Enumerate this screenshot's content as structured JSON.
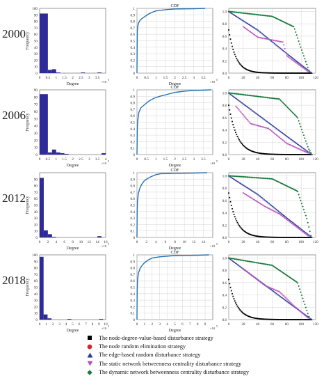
{
  "colors": {
    "hist_bar": "#2e2a9a",
    "cdf_line": "#2471b5",
    "grid": "#cccccc",
    "node_degree": "#000000",
    "node_random": "#d62728",
    "edge_random": "#2b3a9c",
    "static_betweenness": "#b84fc0",
    "dynamic_betweenness": "#1a7a3a"
  },
  "rows": [
    {
      "year": "2000",
      "hist": {
        "ylabel": "Frequency",
        "xlabel": "Degree",
        "xexp": "×10",
        "yticks": [
          "0",
          "10",
          "20",
          "30",
          "40",
          "50",
          "60",
          "70",
          "80",
          "90",
          "100"
        ],
        "xticks": [
          "0",
          "0.5",
          "1",
          "1.5",
          "2",
          "2.5",
          "3",
          "3.5"
        ],
        "ymax": 100,
        "xmax": 4
      },
      "cdf": {
        "title": "CDF",
        "xlabel": "Degree",
        "xexp": "×10",
        "yticks": [
          "0",
          "0.1",
          "0.2",
          "0.3",
          "0.4",
          "0.5",
          "0.6",
          "0.7",
          "0.8",
          "0.9",
          "1"
        ],
        "xticks": [
          "0",
          "0.5",
          "1",
          "1.5",
          "2",
          "2.5",
          "3",
          "3.5"
        ],
        "xmax": 4
      },
      "robust": {
        "yticks": [
          "0.0",
          "0.2",
          "0.4",
          "0.6",
          "0.8",
          "1.0"
        ],
        "xticks": [
          "0",
          "20",
          "40",
          "60",
          "80",
          "100",
          "120"
        ]
      }
    },
    {
      "year": "2006",
      "hist": {
        "ylabel": "Frequency",
        "xlabel": "Degree",
        "xexp": "×10",
        "yticks": [
          "0",
          "10",
          "20",
          "30",
          "40",
          "50",
          "60",
          "70",
          "80",
          "90"
        ],
        "xticks": [
          "0",
          "0.5",
          "1",
          "1.5",
          "2",
          "2.5",
          "3",
          "3.5",
          "4"
        ],
        "ymax": 90,
        "xmax": 4
      },
      "cdf": {
        "title": "CDF",
        "xlabel": "Degree",
        "xexp": "×10",
        "yticks": [
          "0",
          "0.1",
          "0.2",
          "0.3",
          "0.4",
          "0.5",
          "0.6",
          "0.7",
          "0.8",
          "0.9",
          "1"
        ],
        "xticks": [
          "0",
          "0.5",
          "1",
          "1.5",
          "2",
          "2.5",
          "3",
          "3.5"
        ],
        "xmax": 4
      },
      "robust": {
        "yticks": [
          "0.0",
          "0.2",
          "0.4",
          "0.6",
          "0.8",
          "1.0"
        ],
        "xticks": [
          "0",
          "20",
          "40",
          "60",
          "80",
          "100",
          "120"
        ]
      }
    },
    {
      "year": "2012",
      "hist": {
        "ylabel": "Frequency",
        "xlabel": "Degree",
        "xexp": "×10",
        "yticks": [
          "0",
          "10",
          "20",
          "30",
          "40",
          "50",
          "60",
          "70",
          "80",
          "90"
        ],
        "xticks": [
          "0",
          "2",
          "4",
          "6",
          "8",
          "10",
          "12",
          "14",
          "16"
        ],
        "ymax": 100,
        "xmax": 16
      },
      "cdf": {
        "title": "CDF",
        "xlabel": "Degree",
        "xexp": "×10",
        "yticks": [
          "0",
          "0.1",
          "0.2",
          "0.3",
          "0.4",
          "0.5",
          "0.6",
          "0.7",
          "0.8",
          "0.9",
          "1"
        ],
        "xticks": [
          "0",
          "2",
          "4",
          "6",
          "8",
          "10",
          "12",
          "14"
        ],
        "xmax": 16
      },
      "robust": {
        "yticks": [
          "0.0",
          "0.2",
          "0.4",
          "0.6",
          "0.8",
          "1.0"
        ],
        "xticks": [
          "0",
          "20",
          "40",
          "60",
          "80",
          "100",
          "120"
        ]
      }
    },
    {
      "year": "2018",
      "hist": {
        "ylabel": "Frequency",
        "xlabel": "Degree",
        "xexp": "×10",
        "yticks": [
          "0",
          "10",
          "20",
          "30",
          "40",
          "50",
          "60",
          "70",
          "80",
          "90",
          "100"
        ],
        "xticks": [
          "0",
          "1",
          "2",
          "3",
          "4",
          "5",
          "6",
          "7",
          "8",
          "9",
          "10"
        ],
        "ymax": 100,
        "xmax": 10
      },
      "cdf": {
        "title": "CDF",
        "xlabel": "Degree",
        "xexp": "×10",
        "yticks": [
          "0",
          "0.1",
          "0.2",
          "0.3",
          "0.4",
          "0.5",
          "0.6",
          "0.7",
          "0.8",
          "0.9",
          "1"
        ],
        "xticks": [
          "0",
          "1",
          "2",
          "3",
          "4",
          "5",
          "6",
          "7",
          "8",
          "9"
        ],
        "xmax": 10
      },
      "robust": {
        "yticks": [
          "0.0",
          "0.2",
          "0.4",
          "0.6",
          "0.8",
          "1.0"
        ],
        "xticks": [
          "0",
          "20",
          "40",
          "60",
          "80",
          "100",
          "120"
        ]
      }
    }
  ],
  "exponent": "5",
  "legend": [
    {
      "label": "The node-degree-value-based disturbance strategy",
      "marker": "square",
      "color": "#000000"
    },
    {
      "label": "The node random elimination strategy",
      "marker": "circle",
      "color": "#d62728"
    },
    {
      "label": "The edge-based random disturbance strategy",
      "marker": "triangle-up",
      "color": "#2b3a9c"
    },
    {
      "label": "The static network betweenness centrality disturbance strategy",
      "marker": "triangle-down",
      "color": "#b84fc0"
    },
    {
      "label": "The dynamic network betweenness centrality disturbance strategy",
      "marker": "diamond",
      "color": "#1a7a3a"
    }
  ],
  "chart_data": [
    {
      "type": "bar",
      "panel": "histogram",
      "year": "2000",
      "xlabel": "Degree",
      "ylabel": "Frequency",
      "xlim": [
        0,
        4
      ],
      "ylim": [
        0,
        100
      ],
      "bins": [
        [
          0,
          0.5,
          92
        ],
        [
          0.5,
          0.75,
          5
        ],
        [
          0.75,
          1.0,
          6
        ],
        [
          1.0,
          1.25,
          1
        ],
        [
          2.5,
          2.75,
          1
        ],
        [
          3.5,
          3.75,
          1
        ]
      ]
    },
    {
      "type": "line",
      "panel": "cdf",
      "year": "2000",
      "title": "CDF",
      "xlabel": "Degree",
      "xlim": [
        0,
        4
      ],
      "ylim": [
        0,
        1
      ],
      "x": [
        0,
        0.01,
        0.02,
        0.04,
        0.08,
        0.15,
        0.25,
        0.4,
        0.6,
        0.8,
        1.0,
        1.5,
        2.0,
        3.0,
        3.6
      ],
      "y": [
        0,
        0.45,
        0.65,
        0.72,
        0.77,
        0.81,
        0.84,
        0.87,
        0.91,
        0.94,
        0.96,
        0.98,
        0.99,
        0.995,
        1.0
      ]
    },
    {
      "type": "scatter",
      "panel": "robustness",
      "year": "2000",
      "xlim": [
        0,
        120
      ],
      "ylim": [
        0,
        1.05
      ],
      "series": [
        {
          "name": "The node-degree-value-based disturbance strategy",
          "shape": "exp",
          "start": 0.7,
          "decay": 10,
          "end": 115
        },
        {
          "name": "The edge-based random disturbance strategy",
          "shape": "line",
          "points": [
            [
              0,
              1.0
            ],
            [
              40,
              0.7
            ],
            [
              80,
              0.32
            ],
            [
              115,
              0.0
            ]
          ]
        },
        {
          "name": "The static network betweenness centrality disturbance strategy",
          "shape": "line",
          "points": [
            [
              20,
              0.75
            ],
            [
              40,
              0.58
            ],
            [
              75,
              0.5
            ],
            [
              80,
              0.28
            ],
            [
              110,
              0.02
            ]
          ]
        },
        {
          "name": "The dynamic network betweenness centrality disturbance strategy",
          "shape": "line",
          "points": [
            [
              0,
              1.0
            ],
            [
              60,
              0.92
            ],
            [
              90,
              0.75
            ],
            [
              100,
              0.4
            ],
            [
              112,
              0.0
            ]
          ]
        }
      ]
    },
    {
      "type": "bar",
      "panel": "histogram",
      "year": "2006",
      "xlabel": "Degree",
      "ylabel": "Frequency",
      "xlim": [
        0,
        4
      ],
      "ylim": [
        0,
        90
      ],
      "bins": [
        [
          0,
          0.5,
          84
        ],
        [
          0.5,
          0.75,
          3
        ],
        [
          0.75,
          1.0,
          7
        ],
        [
          1.0,
          1.25,
          3
        ],
        [
          1.25,
          1.5,
          2
        ],
        [
          1.5,
          1.75,
          1
        ],
        [
          3.75,
          4.0,
          2
        ]
      ]
    },
    {
      "type": "line",
      "panel": "cdf",
      "year": "2006",
      "title": "CDF",
      "xlabel": "Degree",
      "xlim": [
        0,
        4
      ],
      "ylim": [
        0,
        1
      ],
      "x": [
        0,
        0.02,
        0.05,
        0.1,
        0.2,
        0.4,
        0.6,
        0.9,
        1.2,
        1.6,
        2.0,
        2.5,
        3.0,
        3.5,
        3.9
      ],
      "y": [
        0,
        0.4,
        0.55,
        0.65,
        0.72,
        0.77,
        0.82,
        0.87,
        0.9,
        0.93,
        0.96,
        0.98,
        0.99,
        0.995,
        1.0
      ]
    },
    {
      "type": "scatter",
      "panel": "robustness",
      "year": "2006",
      "xlim": [
        0,
        120
      ],
      "ylim": [
        0,
        1.05
      ],
      "series": [
        {
          "name": "The node-degree-value-based disturbance strategy",
          "shape": "exp",
          "start": 0.8,
          "decay": 12,
          "end": 115
        },
        {
          "name": "The edge-based random disturbance strategy",
          "shape": "line",
          "points": [
            [
              0,
              1.0
            ],
            [
              40,
              0.65
            ],
            [
              80,
              0.3
            ],
            [
              115,
              0.0
            ]
          ]
        },
        {
          "name": "The static network betweenness centrality disturbance strategy",
          "shape": "line",
          "points": [
            [
              10,
              0.78
            ],
            [
              30,
              0.5
            ],
            [
              55,
              0.42
            ],
            [
              80,
              0.18
            ],
            [
              110,
              0.02
            ]
          ]
        },
        {
          "name": "The dynamic network betweenness centrality disturbance strategy",
          "shape": "line",
          "points": [
            [
              0,
              1.0
            ],
            [
              70,
              0.9
            ],
            [
              95,
              0.6
            ],
            [
              110,
              0.1
            ],
            [
              115,
              0.0
            ]
          ]
        }
      ]
    },
    {
      "type": "bar",
      "panel": "histogram",
      "year": "2012",
      "xlabel": "Degree",
      "ylabel": "Frequency",
      "xlim": [
        0,
        16
      ],
      "ylim": [
        0,
        100
      ],
      "bins": [
        [
          0,
          1,
          92
        ],
        [
          1,
          2,
          11
        ],
        [
          2,
          3,
          5
        ],
        [
          3,
          4,
          1
        ],
        [
          14,
          15,
          2
        ]
      ]
    },
    {
      "type": "line",
      "panel": "cdf",
      "year": "2012",
      "title": "CDF",
      "xlabel": "Degree",
      "xlim": [
        0,
        16
      ],
      "ylim": [
        0,
        1
      ],
      "x": [
        0,
        0.05,
        0.1,
        0.3,
        0.6,
        1.0,
        1.5,
        2.0,
        3.0,
        4.0,
        5.0,
        8.0,
        12.0,
        14.8
      ],
      "y": [
        0,
        0.4,
        0.55,
        0.68,
        0.76,
        0.82,
        0.87,
        0.9,
        0.94,
        0.97,
        0.985,
        0.99,
        0.995,
        1.0
      ]
    },
    {
      "type": "scatter",
      "panel": "robustness",
      "year": "2012",
      "xlim": [
        0,
        120
      ],
      "ylim": [
        0,
        1.05
      ],
      "series": [
        {
          "name": "The node-degree-value-based disturbance strategy",
          "shape": "exp",
          "start": 0.72,
          "decay": 11,
          "end": 115
        },
        {
          "name": "The edge-based random disturbance strategy",
          "shape": "line",
          "points": [
            [
              0,
              1.0
            ],
            [
              40,
              0.7
            ],
            [
              80,
              0.32
            ],
            [
              115,
              0.0
            ]
          ]
        },
        {
          "name": "The static network betweenness centrality disturbance strategy",
          "shape": "line",
          "points": [
            [
              20,
              0.72
            ],
            [
              50,
              0.5
            ],
            [
              70,
              0.38
            ],
            [
              90,
              0.2
            ],
            [
              110,
              0.02
            ]
          ]
        },
        {
          "name": "The dynamic network betweenness centrality disturbance strategy",
          "shape": "line",
          "points": [
            [
              0,
              1.0
            ],
            [
              60,
              0.95
            ],
            [
              95,
              0.75
            ],
            [
              108,
              0.3
            ],
            [
              114,
              0.0
            ]
          ]
        }
      ]
    },
    {
      "type": "bar",
      "panel": "histogram",
      "year": "2018",
      "xlabel": "Degree",
      "ylabel": "Frequency",
      "xlim": [
        0,
        10
      ],
      "ylim": [
        0,
        100
      ],
      "bins": [
        [
          0,
          0.6,
          97
        ],
        [
          0.6,
          1.2,
          8
        ],
        [
          1.2,
          1.8,
          2
        ],
        [
          4.2,
          4.8,
          1
        ],
        [
          9.0,
          9.6,
          1
        ]
      ]
    },
    {
      "type": "line",
      "panel": "cdf",
      "year": "2018",
      "title": "CDF",
      "xlabel": "Degree",
      "xlim": [
        0,
        10
      ],
      "ylim": [
        0,
        1
      ],
      "x": [
        0,
        0.03,
        0.08,
        0.2,
        0.4,
        0.7,
        1.0,
        1.5,
        2.0,
        3.0,
        4.5,
        6.0,
        8.0,
        9.5
      ],
      "y": [
        0,
        0.45,
        0.62,
        0.72,
        0.79,
        0.84,
        0.88,
        0.92,
        0.95,
        0.97,
        0.985,
        0.99,
        0.995,
        1.0
      ]
    },
    {
      "type": "scatter",
      "panel": "robustness",
      "year": "2018",
      "xlim": [
        0,
        120
      ],
      "ylim": [
        0,
        1.05
      ],
      "series": [
        {
          "name": "The node-degree-value-based disturbance strategy",
          "shape": "exp",
          "start": 0.65,
          "decay": 11,
          "end": 115
        },
        {
          "name": "The edge-based random disturbance strategy",
          "shape": "line",
          "points": [
            [
              0,
              1.0
            ],
            [
              40,
              0.65
            ],
            [
              80,
              0.3
            ],
            [
              115,
              0.0
            ]
          ]
        },
        {
          "name": "The static network betweenness centrality disturbance strategy",
          "shape": "line",
          "points": [
            [
              20,
              0.82
            ],
            [
              50,
              0.55
            ],
            [
              70,
              0.45
            ],
            [
              90,
              0.22
            ],
            [
              110,
              0.02
            ]
          ]
        },
        {
          "name": "The dynamic network betweenness centrality disturbance strategy",
          "shape": "line",
          "points": [
            [
              0,
              1.0
            ],
            [
              50,
              0.9
            ],
            [
              60,
              0.88
            ],
            [
              95,
              0.6
            ],
            [
              112,
              0.0
            ]
          ]
        }
      ]
    }
  ]
}
